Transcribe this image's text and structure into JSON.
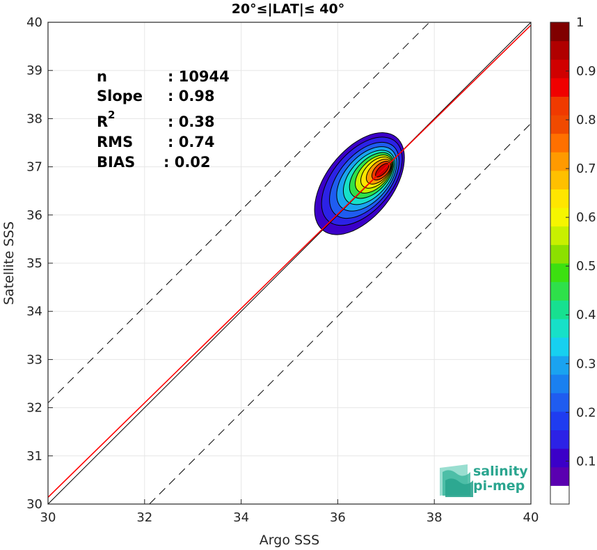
{
  "chart_data": {
    "type": "scatter",
    "subtype": "density-contour",
    "title": "20°≤|LAT|≤ 40°",
    "xlabel": "Argo SSS",
    "ylabel": "Satellite SSS",
    "xlim": [
      30,
      40
    ],
    "ylim": [
      30,
      40
    ],
    "x_ticks": [
      "30",
      "32",
      "34",
      "36",
      "38",
      "40"
    ],
    "y_ticks": [
      "30",
      "31",
      "32",
      "33",
      "34",
      "35",
      "36",
      "37",
      "38",
      "39",
      "40"
    ],
    "grid": true,
    "stats": {
      "n_label": "n",
      "n_value": ": 10944",
      "slope_label": "Slope",
      "slope_value": ": 0.98",
      "r2_label": "R",
      "r2_sup": "2",
      "r2_value": ": 0.38",
      "rms_label": "RMS",
      "rms_value": ": 0.74",
      "bias_label": "BIAS",
      "bias_value": ": 0.02"
    },
    "reference_lines": [
      {
        "name": "one-to-one",
        "slope": 1,
        "intercept": 0,
        "color": "#000000",
        "style": "solid"
      },
      {
        "name": "regression",
        "slope": 0.98,
        "intercept": 0.74,
        "color": "#ff0000",
        "style": "solid"
      },
      {
        "name": "upper-bound",
        "slope": 1,
        "intercept": 2.1,
        "color": "#000000",
        "style": "dashed"
      },
      {
        "name": "lower-bound",
        "slope": 1,
        "intercept": -2.1,
        "color": "#000000",
        "style": "dashed"
      }
    ],
    "density_contours": [
      {
        "level": 0.05,
        "center": [
          36.45,
          36.65
        ],
        "sx": 1.15,
        "sy": 2.05,
        "angle": 52,
        "color": "#3b00c8"
      },
      {
        "level": 0.1,
        "center": [
          36.5,
          36.7
        ],
        "sx": 1.02,
        "sy": 1.8,
        "angle": 50,
        "color": "#2c22e6"
      },
      {
        "level": 0.2,
        "center": [
          36.55,
          36.72
        ],
        "sx": 0.88,
        "sy": 1.55,
        "angle": 50,
        "color": "#1f5cf0"
      },
      {
        "level": 0.3,
        "center": [
          36.6,
          36.75
        ],
        "sx": 0.76,
        "sy": 1.32,
        "angle": 49,
        "color": "#1aa3f0"
      },
      {
        "level": 0.4,
        "center": [
          36.65,
          36.78
        ],
        "sx": 0.65,
        "sy": 1.12,
        "angle": 48,
        "color": "#17e0c8"
      },
      {
        "level": 0.5,
        "center": [
          36.7,
          36.82
        ],
        "sx": 0.55,
        "sy": 0.95,
        "angle": 47,
        "color": "#2ee04a"
      },
      {
        "level": 0.6,
        "center": [
          36.75,
          36.85
        ],
        "sx": 0.46,
        "sy": 0.8,
        "angle": 46,
        "color": "#c8f000"
      },
      {
        "level": 0.7,
        "center": [
          36.8,
          36.88
        ],
        "sx": 0.38,
        "sy": 0.66,
        "angle": 45,
        "color": "#ffe600"
      },
      {
        "level": 0.8,
        "center": [
          36.85,
          36.9
        ],
        "sx": 0.3,
        "sy": 0.53,
        "angle": 45,
        "color": "#ff9a00"
      },
      {
        "level": 0.9,
        "center": [
          36.9,
          36.92
        ],
        "sx": 0.22,
        "sy": 0.4,
        "angle": 45,
        "color": "#f03a00"
      },
      {
        "level": 1.0,
        "center": [
          36.92,
          36.93
        ],
        "sx": 0.13,
        "sy": 0.3,
        "angle": 45,
        "color": "#c80000"
      }
    ],
    "colorbar": {
      "ticks": [
        "0.1",
        "0.2",
        "0.3",
        "0.4",
        "0.5",
        "0.6",
        "0.7",
        "0.8",
        "0.9",
        "1"
      ],
      "colors": [
        "#ffffff",
        "#5a00b0",
        "#3b00c8",
        "#2c22e6",
        "#1f3cf0",
        "#1f5cf0",
        "#1a80f0",
        "#1aa3f0",
        "#17d0f0",
        "#17e0c8",
        "#17e090",
        "#2ee04a",
        "#3ce010",
        "#8ce000",
        "#c8f000",
        "#f5f500",
        "#ffe600",
        "#ffc000",
        "#ff9a00",
        "#ff7000",
        "#f04a00",
        "#f03a00",
        "#f00000",
        "#d00000",
        "#b00000",
        "#800000"
      ]
    }
  },
  "logo": {
    "line1": "salinity",
    "line2": "pi-mep",
    "color": "#2aa58f"
  }
}
